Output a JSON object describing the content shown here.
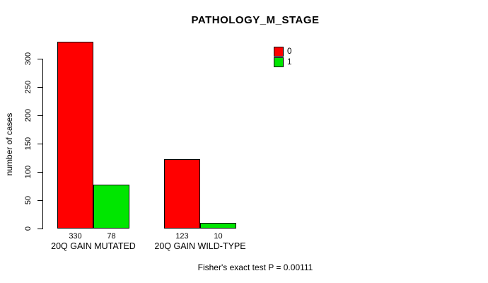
{
  "chart_data": {
    "type": "bar",
    "title": "PATHOLOGY_M_STAGE",
    "ylabel": "number of cases",
    "xlabel": "",
    "categories": [
      "20Q GAIN MUTATED",
      "20Q GAIN WILD-TYPE"
    ],
    "series": [
      {
        "name": "0",
        "color": "#ff0000",
        "values": [
          330,
          123
        ]
      },
      {
        "name": "1",
        "color": "#00e600",
        "values": [
          78,
          10
        ]
      }
    ],
    "bar_value_labels": [
      [
        "330",
        "123"
      ],
      [
        "78",
        "10"
      ]
    ],
    "yticks": [
      0,
      50,
      100,
      150,
      200,
      250,
      300
    ],
    "ylim": [
      0,
      335
    ],
    "grid": false,
    "legend_position": "top-right",
    "annotation": "Fisher's exact test P = 0.00111"
  },
  "colors": {
    "background": "#ffffff",
    "axis": "#000000",
    "text": "#000000",
    "series_0": "#ff0000",
    "series_1": "#00e600"
  }
}
